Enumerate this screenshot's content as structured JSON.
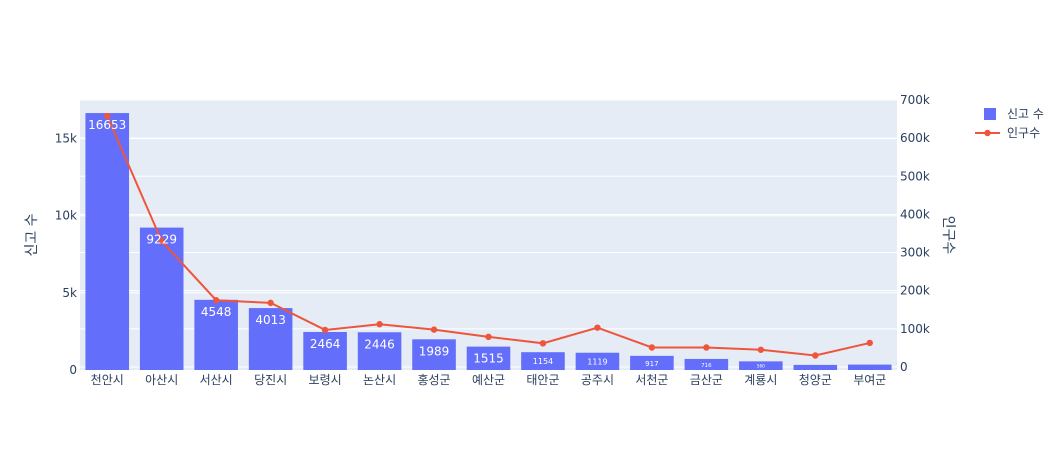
{
  "chart_data": {
    "type": "bar",
    "categories": [
      "천안시",
      "아산시",
      "서산시",
      "당진시",
      "보령시",
      "논산시",
      "홍성군",
      "예산군",
      "태안군",
      "공주시",
      "서천군",
      "금산군",
      "계룡시",
      "청양군",
      "부여군"
    ],
    "series": [
      {
        "name": "신고 수",
        "type": "bar",
        "axis": "left",
        "values": [
          16653,
          9229,
          4548,
          4013,
          2464,
          2446,
          1989,
          1515,
          1154,
          1119,
          917,
          716,
          560,
          330,
          350
        ],
        "labels": [
          "16653",
          "9229",
          "4548",
          "4013",
          "2464",
          "2446",
          "1989",
          "1515",
          "1154",
          "1119",
          "917",
          "716",
          "560",
          "",
          ""
        ],
        "color": "#636efa"
      },
      {
        "name": "인구수",
        "type": "line",
        "axis": "right",
        "values": [
          658000,
          330000,
          175000,
          168000,
          97000,
          112000,
          98000,
          79000,
          62000,
          103000,
          51000,
          51000,
          45000,
          30000,
          63000
        ],
        "color": "#ef553b"
      }
    ],
    "ylabel": "신고 수",
    "y2label": "인구수",
    "ylim": [
      0,
      17500
    ],
    "y2lim": [
      -8000,
      700000
    ],
    "yticks": [
      0,
      5000,
      10000,
      15000
    ],
    "yticklabels": [
      "0",
      "5k",
      "10k",
      "15k"
    ],
    "y2ticks": [
      0,
      100000,
      200000,
      300000,
      400000,
      500000,
      600000,
      700000
    ],
    "y2ticklabels": [
      "0",
      "100k",
      "200k",
      "300k",
      "400k",
      "500k",
      "600k",
      "700k"
    ],
    "grid": true,
    "legend_position": "top-right",
    "plot_bg": "#e5ecf6"
  }
}
